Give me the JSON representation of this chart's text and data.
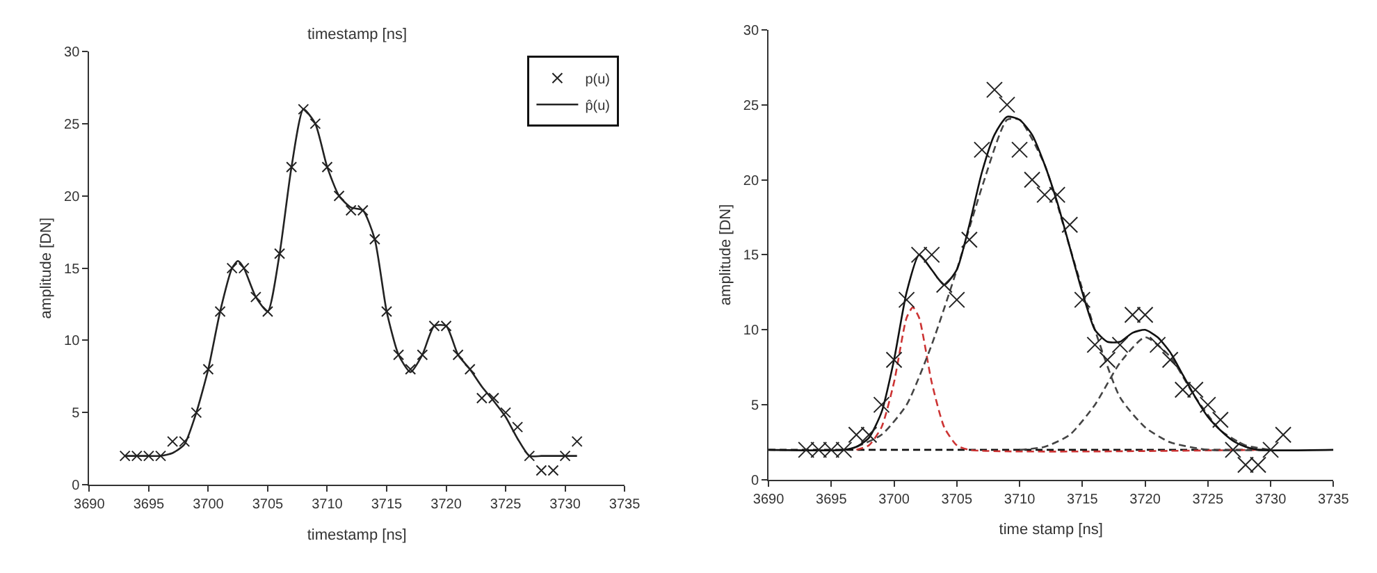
{
  "chart_data": [
    {
      "type": "line",
      "title": "timestamp [ns]",
      "xlabel": "timestamp [ns]",
      "ylabel": "amplitude [DN]",
      "xlim": [
        3690,
        3735
      ],
      "xticks": [
        3690,
        3695,
        3700,
        3705,
        3710,
        3715,
        3720,
        3725,
        3730,
        3735
      ],
      "ylim": [
        0,
        30
      ],
      "yticks": [
        0,
        5,
        10,
        15,
        20,
        25,
        30
      ],
      "legend": "top right",
      "series": [
        {
          "name": "p(u)",
          "type": "scatter",
          "marker": "cross",
          "color": "#222222",
          "x": [
            3693,
            3694,
            3695,
            3696,
            3697,
            3698,
            3699,
            3700,
            3701,
            3702,
            3703,
            3704,
            3705,
            3706,
            3707,
            3708,
            3709,
            3710,
            3711,
            3712,
            3713,
            3714,
            3715,
            3716,
            3717,
            3718,
            3719,
            3720,
            3721,
            3722,
            3723,
            3724,
            3725,
            3726,
            3727,
            3728,
            3729,
            3730,
            3731
          ],
          "values": [
            2,
            2,
            2,
            2,
            3,
            3,
            5,
            8,
            12,
            15,
            15,
            13,
            12,
            16,
            22,
            26,
            25,
            22,
            20,
            19,
            19,
            17,
            12,
            9,
            8,
            9,
            11,
            11,
            9,
            8,
            6,
            6,
            5,
            4,
            2,
            1,
            1,
            2,
            3
          ]
        },
        {
          "name": "p̂(u)",
          "line_style": "solid",
          "color": "#222222",
          "x": [
            3693,
            3694,
            3695,
            3696,
            3697,
            3698,
            3699,
            3700,
            3701,
            3702,
            3702.5,
            3703,
            3704,
            3705,
            3706,
            3707,
            3708,
            3709,
            3710,
            3711,
            3712,
            3713,
            3714,
            3715,
            3716,
            3717,
            3718,
            3719,
            3720,
            3721,
            3722,
            3723,
            3724,
            3725,
            3726,
            3727,
            3728,
            3729,
            3730,
            3731
          ],
          "values": [
            2,
            2,
            2,
            2,
            2.2,
            2.8,
            5,
            8,
            12,
            15,
            15.5,
            15,
            13,
            12,
            16,
            22,
            26,
            25,
            22,
            20,
            19.2,
            19,
            17,
            12,
            9,
            7.8,
            9,
            11,
            11,
            9,
            8,
            6.8,
            5.8,
            4.7,
            3.2,
            2,
            2,
            2,
            2,
            2
          ]
        }
      ]
    },
    {
      "type": "line",
      "xlabel": "time stamp [ns]",
      "ylabel": "amplitude [DN]",
      "xlim": [
        3690,
        3735
      ],
      "xticks": [
        3690,
        3695,
        3700,
        3705,
        3710,
        3715,
        3720,
        3725,
        3730,
        3735
      ],
      "ylim": [
        0,
        30
      ],
      "yticks": [
        0,
        5,
        10,
        15,
        20,
        25,
        30
      ],
      "legend": false,
      "series": [
        {
          "line_style": "dashed",
          "color": "#111111",
          "x": [
            3690,
            3730
          ],
          "values": [
            2,
            2
          ]
        },
        {
          "line_style": "dashed",
          "color": "#cc3333",
          "x": [
            3697,
            3698,
            3699,
            3700,
            3701,
            3701.5,
            3702,
            3703,
            3704,
            3705,
            3706,
            3729
          ],
          "values": [
            2,
            2.3,
            3.5,
            6.5,
            10.8,
            11.5,
            10.8,
            6.5,
            3.5,
            2.3,
            2,
            2
          ]
        },
        {
          "line_style": "dashed",
          "color": "#444444",
          "x": [
            3697,
            3699,
            3701,
            3703,
            3705,
            3707,
            3709,
            3710,
            3712,
            3714,
            3716,
            3718,
            3720,
            3722,
            3725,
            3730
          ],
          "values": [
            2.2,
            3,
            5,
            9,
            14,
            19.5,
            24,
            24,
            21,
            15.5,
            10,
            5.5,
            3.5,
            2.5,
            2,
            2
          ]
        },
        {
          "line_style": "dashed",
          "color": "#444444",
          "x": [
            3710,
            3712,
            3714,
            3716,
            3718,
            3720,
            3722,
            3724,
            3726,
            3728,
            3730
          ],
          "values": [
            2,
            2.2,
            3,
            5,
            7.8,
            9.5,
            8.2,
            5.5,
            3.3,
            2.3,
            2
          ]
        },
        {
          "line_style": "solid",
          "color": "#111111",
          "x": [
            3690,
            3696,
            3697,
            3698,
            3699,
            3700,
            3701,
            3702,
            3703,
            3704,
            3705,
            3706,
            3707,
            3708,
            3709,
            3710,
            3711,
            3712,
            3713,
            3714,
            3715,
            3716,
            3717,
            3718,
            3719,
            3720,
            3721,
            3722,
            3723,
            3724,
            3725,
            3726,
            3727,
            3728,
            3729,
            3735
          ],
          "values": [
            2,
            2,
            2.2,
            2.8,
            4.5,
            8,
            12.5,
            15,
            14,
            13,
            14,
            17,
            20.5,
            23,
            24.2,
            24,
            23,
            21,
            18.5,
            15.5,
            12.5,
            10,
            9.2,
            9.2,
            9.8,
            10,
            9.5,
            8.5,
            7,
            5.5,
            4.2,
            3.3,
            2.6,
            2.2,
            2,
            2
          ]
        },
        {
          "type": "scatter",
          "marker": "cross",
          "color": "#222222",
          "x": [
            3693,
            3694,
            3695,
            3696,
            3697,
            3698,
            3699,
            3700,
            3701,
            3702,
            3703,
            3704,
            3705,
            3706,
            3707,
            3708,
            3709,
            3710,
            3711,
            3712,
            3713,
            3714,
            3715,
            3716,
            3717,
            3718,
            3719,
            3720,
            3721,
            3722,
            3723,
            3724,
            3725,
            3726,
            3727,
            3728,
            3729,
            3730,
            3731
          ],
          "values": [
            2,
            2,
            2,
            2,
            3,
            3,
            5,
            8,
            12,
            15,
            15,
            13,
            12,
            16,
            22,
            26,
            25,
            22,
            20,
            19,
            19,
            17,
            12,
            9,
            8,
            9,
            11,
            11,
            9,
            8,
            6,
            6,
            5,
            4,
            2,
            1,
            1,
            2,
            3
          ]
        }
      ]
    }
  ]
}
